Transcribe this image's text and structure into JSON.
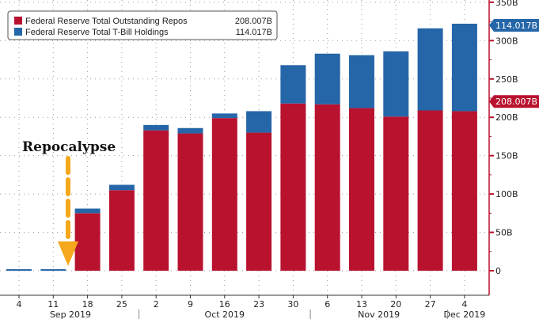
{
  "chart_data": {
    "type": "bar",
    "stacked": true,
    "categories": [
      "4",
      "11",
      "18",
      "25",
      "2",
      "9",
      "16",
      "23",
      "30",
      "6",
      "13",
      "20",
      "27",
      "4"
    ],
    "month_labels": [
      {
        "label": "Sep 2019",
        "from": 0,
        "to": 3
      },
      {
        "label": "Oct 2019",
        "from": 4,
        "to": 8
      },
      {
        "label": "Nov 2019",
        "from": 9,
        "to": 12
      },
      {
        "label": "Dec 2019",
        "from": 13,
        "to": 13
      }
    ],
    "series": [
      {
        "name": "Federal Reserve Total Outstanding Repos",
        "color": "#b8122f",
        "last_value_label": "208.007B",
        "values": [
          0,
          0,
          75,
          105,
          183,
          179,
          199,
          180,
          218,
          217,
          212,
          201,
          209,
          208.007
        ]
      },
      {
        "name": "Federal Reserve Total T-Bill Holdings",
        "color": "#2566a8",
        "last_value_label": "114.017B",
        "values": [
          2,
          2,
          6,
          7,
          7,
          7,
          6,
          28,
          50,
          66,
          69,
          85,
          107,
          114.017
        ]
      }
    ],
    "yticks": [
      0,
      50,
      100,
      150,
      200,
      250,
      300,
      350
    ],
    "ytick_labels": [
      "0",
      "50B",
      "100B",
      "150B",
      "200B",
      "250B",
      "300B",
      "350B"
    ],
    "ylim": [
      -25,
      350
    ],
    "y_axis_position": "right",
    "grid": true,
    "legend_position": "top-left",
    "annotation": {
      "text": "Repocalypse",
      "arrow_color": "#f5a81c",
      "points_to_category_between": [
        "11",
        "18"
      ]
    }
  }
}
